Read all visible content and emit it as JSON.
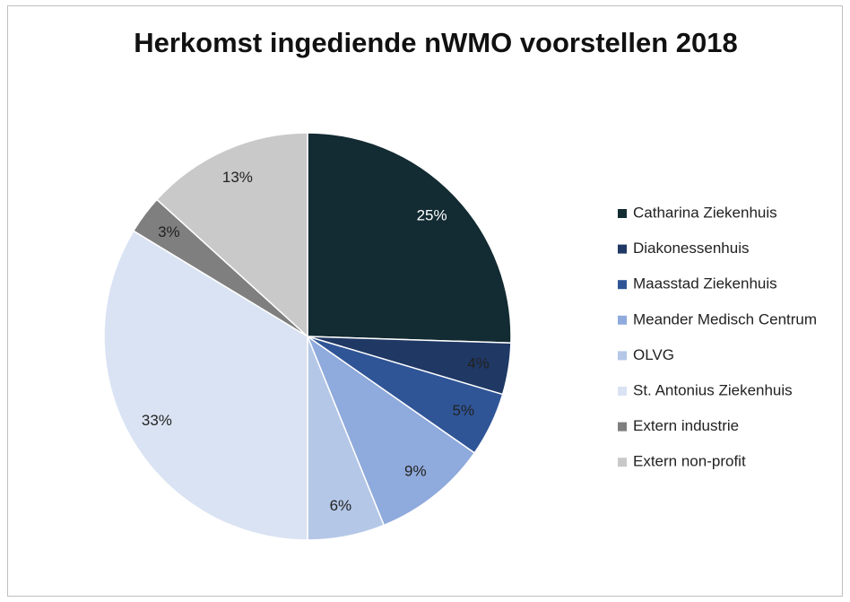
{
  "chart_data": {
    "type": "pie",
    "title": "Herkomst ingediende nWMO voorstellen 2018",
    "categories": [
      "Catharina Ziekenhuis",
      "Diakonessenhuis",
      "Maasstad Ziekenhuis",
      "Meander Medisch Centrum",
      "OLVG",
      "St. Antonius Ziekenhuis",
      "Extern industrie",
      "Extern non-profit"
    ],
    "values": [
      25,
      4,
      5,
      9,
      6,
      33,
      3,
      13
    ],
    "value_labels": [
      "25%",
      "4%",
      "5%",
      "9%",
      "6%",
      "33%",
      "3%",
      "13%"
    ],
    "colors": [
      "#132b33",
      "#1f3864",
      "#2f5597",
      "#8faadc",
      "#b4c7e7",
      "#dae3f3",
      "#7f7f7f",
      "#c9c9c9"
    ],
    "legend": "right"
  }
}
